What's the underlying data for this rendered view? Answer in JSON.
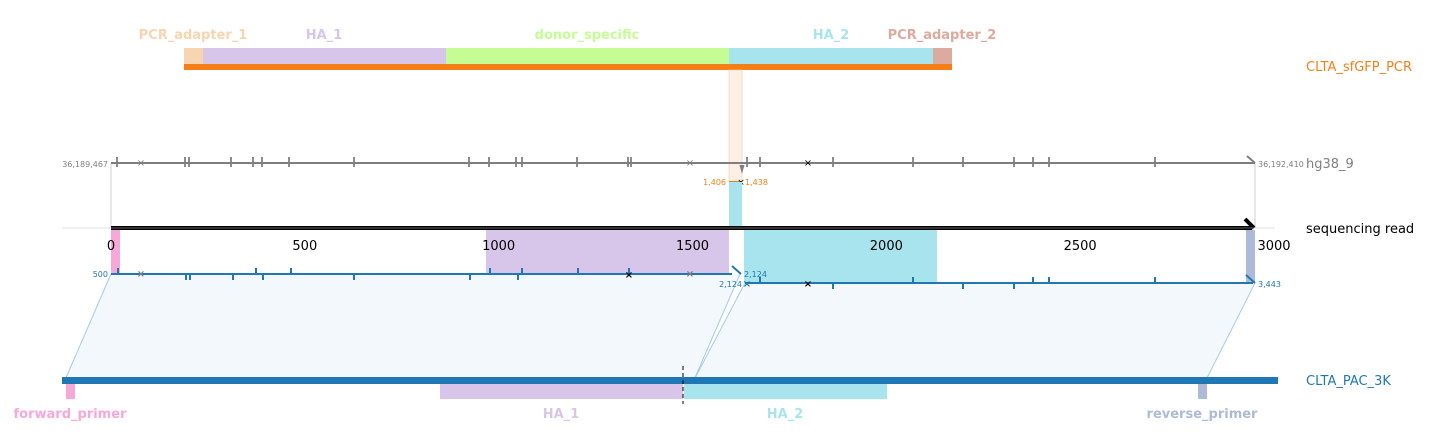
{
  "colors": {
    "pcr_adapter": "#f6d5b0",
    "ha1": "#d8c6ea",
    "donor_specific": "#c5fd94",
    "ha2": "#a8e4ee",
    "pcr_adapter_2": "#dcaa9e",
    "forward_primer": "#f7a8d8",
    "reverse_primer": "#adbbd8",
    "orange": "#f57f17",
    "blue": "#1f77b4",
    "grey": "#7f7f7f",
    "black": "#000000"
  },
  "tracks": {
    "pcr": {
      "name": "CLTA_sfGFP_PCR"
    },
    "ref": {
      "name": "hg38_9",
      "start_coord": "36,189,467",
      "end_coord": "36,192,410"
    },
    "read": {
      "name": "sequencing read"
    },
    "pac": {
      "name": "CLTA_PAC_3K"
    }
  },
  "pcr_features": [
    {
      "label": "PCR_adapter_1",
      "color": "#f6d5b0"
    },
    {
      "label": "HA_1",
      "color": "#d8c6ea"
    },
    {
      "label": "donor_specific",
      "color": "#c5fd94"
    },
    {
      "label": "HA_2",
      "color": "#a8e4ee"
    },
    {
      "label": "PCR_adapter_2",
      "color": "#dcaa9e"
    }
  ],
  "pac_features": [
    {
      "label": "forward_primer",
      "color": "#f7a8d8"
    },
    {
      "label": "HA_1",
      "color": "#d8c6ea"
    },
    {
      "label": "HA_2",
      "color": "#a8e4ee"
    },
    {
      "label": "reverse_primer",
      "color": "#adbbd8"
    }
  ],
  "read_axis": {
    "ticks": [
      "0",
      "500",
      "1000",
      "1500",
      "2000",
      "2500",
      "3000"
    ]
  },
  "coordinates": {
    "orange_left": "1,406",
    "orange_right": "1,438",
    "blue_left_start": "500",
    "blue_mid_end": "2,124",
    "blue_mid_start": "2,124",
    "blue_right_end": "3,443"
  }
}
